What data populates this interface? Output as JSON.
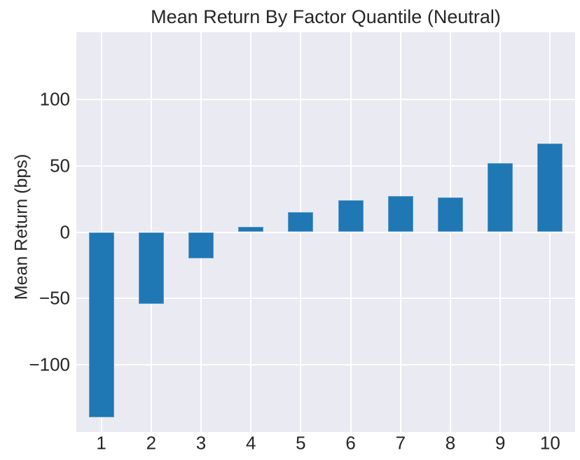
{
  "chart_data": {
    "type": "bar",
    "title": "Mean Return By Factor Quantile (Neutral)",
    "xlabel": "",
    "ylabel": "Mean Return (bps)",
    "categories": [
      "1",
      "2",
      "3",
      "4",
      "5",
      "6",
      "7",
      "8",
      "9",
      "10"
    ],
    "values": [
      -140,
      -54,
      -20,
      4,
      15,
      24,
      27,
      26,
      52,
      67
    ],
    "ylim": [
      -151,
      151
    ],
    "ytick_values": [
      -100,
      -50,
      0,
      50,
      100
    ],
    "ytick_labels": [
      "−100",
      "−50",
      "0",
      "50",
      "100"
    ],
    "grid": true,
    "legend_position": "none",
    "colors": {
      "bar": "#1f77b4",
      "plot_bg": "#eaeaf2",
      "grid": "#ffffff",
      "text": "#262626",
      "figure_bg": "#ffffff"
    }
  }
}
